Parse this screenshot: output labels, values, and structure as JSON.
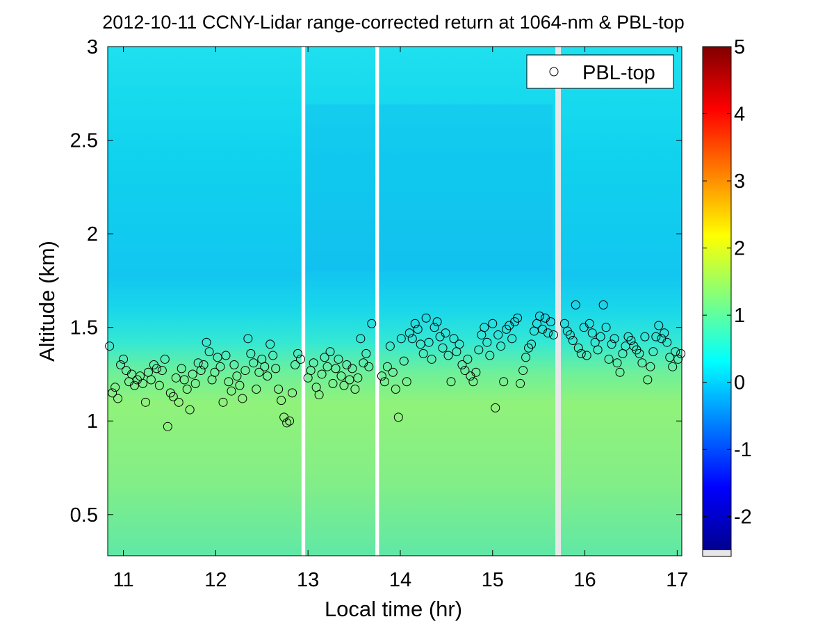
{
  "chart_data": {
    "type": "heatmap",
    "title": "2012-10-11 CCNY-Lidar range-corrected return at 1064-nm & PBL-top",
    "xlabel": "Local time (hr)",
    "ylabel": "Altitude (km)",
    "xlim": [
      10.83,
      17.05
    ],
    "ylim": [
      0.28,
      3.0
    ],
    "x_ticks": [
      11,
      12,
      13,
      14,
      15,
      16,
      17
    ],
    "y_ticks": [
      0.5,
      1,
      1.5,
      2,
      2.5,
      3
    ],
    "colorbar": {
      "range": [
        -2.5,
        5
      ],
      "ticks": [
        -2,
        -1,
        0,
        1,
        2,
        3,
        4,
        5
      ],
      "colormap": "jet"
    },
    "heatmap_description_values": {
      "low_layer_value": 1.1,
      "upper_layer_value": 0.15,
      "upper_dark_value": 0.0
    },
    "data_gaps": [
      [
        12.93,
        12.97
      ],
      [
        13.73,
        13.77
      ],
      [
        15.68,
        15.74
      ]
    ],
    "legend": {
      "position": "top-right",
      "entries": [
        "PBL-top"
      ]
    },
    "series": [
      {
        "name": "PBL-top",
        "marker": "open-circle",
        "x": [
          10.85,
          10.88,
          10.91,
          10.94,
          10.97,
          11.0,
          11.03,
          11.06,
          11.09,
          11.12,
          11.15,
          11.18,
          11.21,
          11.24,
          11.27,
          11.3,
          11.33,
          11.36,
          11.39,
          11.42,
          11.45,
          11.48,
          11.51,
          11.54,
          11.57,
          11.6,
          11.63,
          11.66,
          11.69,
          11.72,
          11.75,
          11.78,
          11.81,
          11.84,
          11.87,
          11.9,
          11.93,
          11.96,
          11.99,
          12.02,
          12.05,
          12.08,
          12.11,
          12.14,
          12.17,
          12.2,
          12.23,
          12.26,
          12.29,
          12.32,
          12.35,
          12.38,
          12.41,
          12.44,
          12.47,
          12.5,
          12.53,
          12.56,
          12.59,
          12.62,
          12.65,
          12.68,
          12.71,
          12.74,
          12.77,
          12.8,
          12.83,
          12.86,
          12.89,
          12.92,
          13.0,
          13.03,
          13.06,
          13.09,
          13.12,
          13.15,
          13.18,
          13.21,
          13.24,
          13.27,
          13.3,
          13.33,
          13.36,
          13.39,
          13.42,
          13.45,
          13.48,
          13.51,
          13.54,
          13.57,
          13.6,
          13.63,
          13.66,
          13.69,
          13.8,
          13.83,
          13.86,
          13.89,
          13.92,
          13.95,
          13.98,
          14.01,
          14.04,
          14.07,
          14.1,
          14.13,
          14.16,
          14.19,
          14.22,
          14.25,
          14.28,
          14.31,
          14.34,
          14.37,
          14.4,
          14.43,
          14.46,
          14.49,
          14.52,
          14.55,
          14.58,
          14.61,
          14.64,
          14.67,
          14.7,
          14.73,
          14.76,
          14.79,
          14.82,
          14.85,
          14.88,
          14.91,
          14.94,
          14.97,
          15.0,
          15.03,
          15.06,
          15.09,
          15.12,
          15.15,
          15.18,
          15.21,
          15.24,
          15.27,
          15.3,
          15.33,
          15.36,
          15.39,
          15.42,
          15.45,
          15.48,
          15.51,
          15.54,
          15.57,
          15.6,
          15.63,
          15.66,
          15.78,
          15.81,
          15.84,
          15.87,
          15.9,
          15.93,
          15.96,
          15.99,
          16.02,
          16.05,
          16.08,
          16.11,
          16.14,
          16.17,
          16.2,
          16.23,
          16.26,
          16.29,
          16.32,
          16.35,
          16.38,
          16.41,
          16.44,
          16.47,
          16.5,
          16.53,
          16.56,
          16.59,
          16.62,
          16.65,
          16.68,
          16.71,
          16.74,
          16.77,
          16.8,
          16.83,
          16.86,
          16.89,
          16.92,
          16.95,
          16.98,
          17.01,
          17.04
        ],
        "y": [
          1.4,
          1.15,
          1.18,
          1.12,
          1.3,
          1.33,
          1.27,
          1.21,
          1.25,
          1.19,
          1.22,
          1.24,
          1.2,
          1.1,
          1.26,
          1.22,
          1.3,
          1.28,
          1.19,
          1.27,
          1.33,
          0.97,
          1.15,
          1.13,
          1.23,
          1.1,
          1.28,
          1.22,
          1.17,
          1.06,
          1.25,
          1.2,
          1.31,
          1.27,
          1.3,
          1.42,
          1.37,
          1.22,
          1.26,
          1.34,
          1.29,
          1.1,
          1.35,
          1.21,
          1.16,
          1.3,
          1.24,
          1.19,
          1.12,
          1.27,
          1.44,
          1.36,
          1.31,
          1.17,
          1.26,
          1.33,
          1.29,
          1.24,
          1.41,
          1.35,
          1.28,
          1.17,
          1.11,
          1.02,
          0.99,
          1.0,
          1.15,
          1.3,
          1.36,
          1.33,
          1.23,
          1.27,
          1.31,
          1.18,
          1.14,
          1.25,
          1.34,
          1.29,
          1.37,
          1.2,
          1.28,
          1.33,
          1.24,
          1.19,
          1.3,
          1.22,
          1.28,
          1.17,
          1.23,
          1.44,
          1.31,
          1.36,
          1.29,
          1.52,
          1.24,
          1.21,
          1.29,
          1.4,
          1.26,
          1.17,
          1.02,
          1.44,
          1.32,
          1.21,
          1.47,
          1.44,
          1.52,
          1.49,
          1.41,
          1.36,
          1.55,
          1.42,
          1.33,
          1.5,
          1.53,
          1.45,
          1.39,
          1.47,
          1.35,
          1.21,
          1.44,
          1.37,
          1.41,
          1.3,
          1.27,
          1.33,
          1.24,
          1.21,
          1.26,
          1.38,
          1.46,
          1.5,
          1.42,
          1.35,
          1.52,
          1.07,
          1.46,
          1.4,
          1.21,
          1.49,
          1.51,
          1.44,
          1.53,
          1.55,
          1.2,
          1.27,
          1.34,
          1.39,
          1.41,
          1.48,
          1.52,
          1.56,
          1.49,
          1.55,
          1.47,
          1.53,
          1.46,
          1.52,
          1.48,
          1.46,
          1.43,
          1.62,
          1.39,
          1.36,
          1.5,
          1.35,
          1.52,
          1.47,
          1.42,
          1.38,
          1.45,
          1.62,
          1.5,
          1.33,
          1.41,
          1.44,
          1.31,
          1.26,
          1.36,
          1.4,
          1.45,
          1.43,
          1.4,
          1.38,
          1.36,
          1.31,
          1.45,
          1.22,
          1.29,
          1.37,
          1.45,
          1.51,
          1.44,
          1.47,
          1.42,
          1.34,
          1.29,
          1.37,
          1.33,
          1.36
        ]
      }
    ]
  }
}
